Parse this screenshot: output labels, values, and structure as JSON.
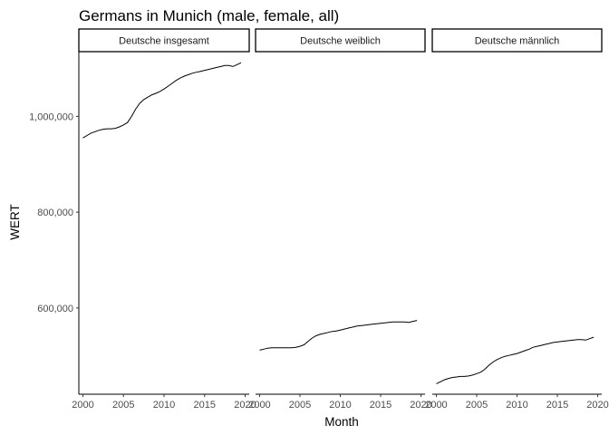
{
  "chart_data": {
    "type": "line",
    "title": "Germans in Munich (male, female, all)",
    "xlabel": "Month",
    "ylabel": "WERT",
    "xlim": [
      1999.5,
      2020.5
    ],
    "ylim": [
      420000,
      1135000
    ],
    "x_ticks": [
      2000,
      2005,
      2010,
      2015,
      2020
    ],
    "y_ticks": [
      {
        "value": 600000,
        "label": "600,000"
      },
      {
        "value": 800000,
        "label": "800,000"
      },
      {
        "value": 1000000,
        "label": "1,000,000"
      }
    ],
    "grid": false,
    "facets": [
      {
        "label": "Deutsche insgesamt",
        "series": [
          {
            "x": [
              2000,
              2000.5,
              2001,
              2001.5,
              2002,
              2002.5,
              2003,
              2003.5,
              2004,
              2004.5,
              2005,
              2005.5,
              2006,
              2006.5,
              2007,
              2007.5,
              2008,
              2008.5,
              2009,
              2009.5,
              2010,
              2010.5,
              2011,
              2011.5,
              2012,
              2012.5,
              2013,
              2013.5,
              2014,
              2014.5,
              2015,
              2015.5,
              2016,
              2016.5,
              2017,
              2017.5,
              2018,
              2018.5,
              2019,
              2019.5
            ],
            "y": [
              955000,
              960000,
              965000,
              968000,
              971000,
              973000,
              974000,
              974000,
              975000,
              978000,
              982000,
              987000,
              1000000,
              1015000,
              1027000,
              1035000,
              1040000,
              1045000,
              1048000,
              1052000,
              1057000,
              1063000,
              1069000,
              1075000,
              1080000,
              1084000,
              1087000,
              1090000,
              1092000,
              1094000,
              1096000,
              1098000,
              1100000,
              1102000,
              1104000,
              1106000,
              1106000,
              1104000,
              1108000,
              1112000
            ]
          }
        ]
      },
      {
        "label": "Deutsche weiblich",
        "series": [
          {
            "x": [
              2000,
              2000.5,
              2001,
              2001.5,
              2002,
              2002.5,
              2003,
              2003.5,
              2004,
              2004.5,
              2005,
              2005.5,
              2006,
              2006.5,
              2007,
              2007.5,
              2008,
              2008.5,
              2009,
              2009.5,
              2010,
              2010.5,
              2011,
              2011.5,
              2012,
              2012.5,
              2013,
              2013.5,
              2014,
              2014.5,
              2015,
              2015.5,
              2016,
              2016.5,
              2017,
              2017.5,
              2018,
              2018.5,
              2019,
              2019.5
            ],
            "y": [
              512000,
              514000,
              516000,
              517000,
              517000,
              517000,
              517000,
              517000,
              517000,
              518000,
              520000,
              523000,
              530000,
              537000,
              542000,
              545000,
              547000,
              549000,
              551000,
              552000,
              554000,
              556000,
              558000,
              560000,
              562000,
              563000,
              564000,
              565000,
              566000,
              567000,
              568000,
              569000,
              570000,
              571000,
              571000,
              571000,
              571000,
              570000,
              572000,
              574000
            ]
          }
        ]
      },
      {
        "label": "Deutsche männlich",
        "series": [
          {
            "x": [
              2000,
              2000.5,
              2001,
              2001.5,
              2002,
              2002.5,
              2003,
              2003.5,
              2004,
              2004.5,
              2005,
              2005.5,
              2006,
              2006.5,
              2007,
              2007.5,
              2008,
              2008.5,
              2009,
              2009.5,
              2010,
              2010.5,
              2011,
              2011.5,
              2012,
              2012.5,
              2013,
              2013.5,
              2014,
              2014.5,
              2015,
              2015.5,
              2016,
              2016.5,
              2017,
              2017.5,
              2018,
              2018.5,
              2019,
              2019.5
            ],
            "y": [
              442000,
              446000,
              450000,
              453000,
              455000,
              456000,
              457000,
              457000,
              458000,
              460000,
              463000,
              466000,
              472000,
              480000,
              487000,
              492000,
              496000,
              499000,
              501000,
              503000,
              505000,
              508000,
              511000,
              514000,
              518000,
              520000,
              522000,
              524000,
              526000,
              528000,
              529000,
              530000,
              531000,
              532000,
              533000,
              534000,
              534000,
              533000,
              536000,
              539000
            ]
          }
        ]
      }
    ]
  }
}
